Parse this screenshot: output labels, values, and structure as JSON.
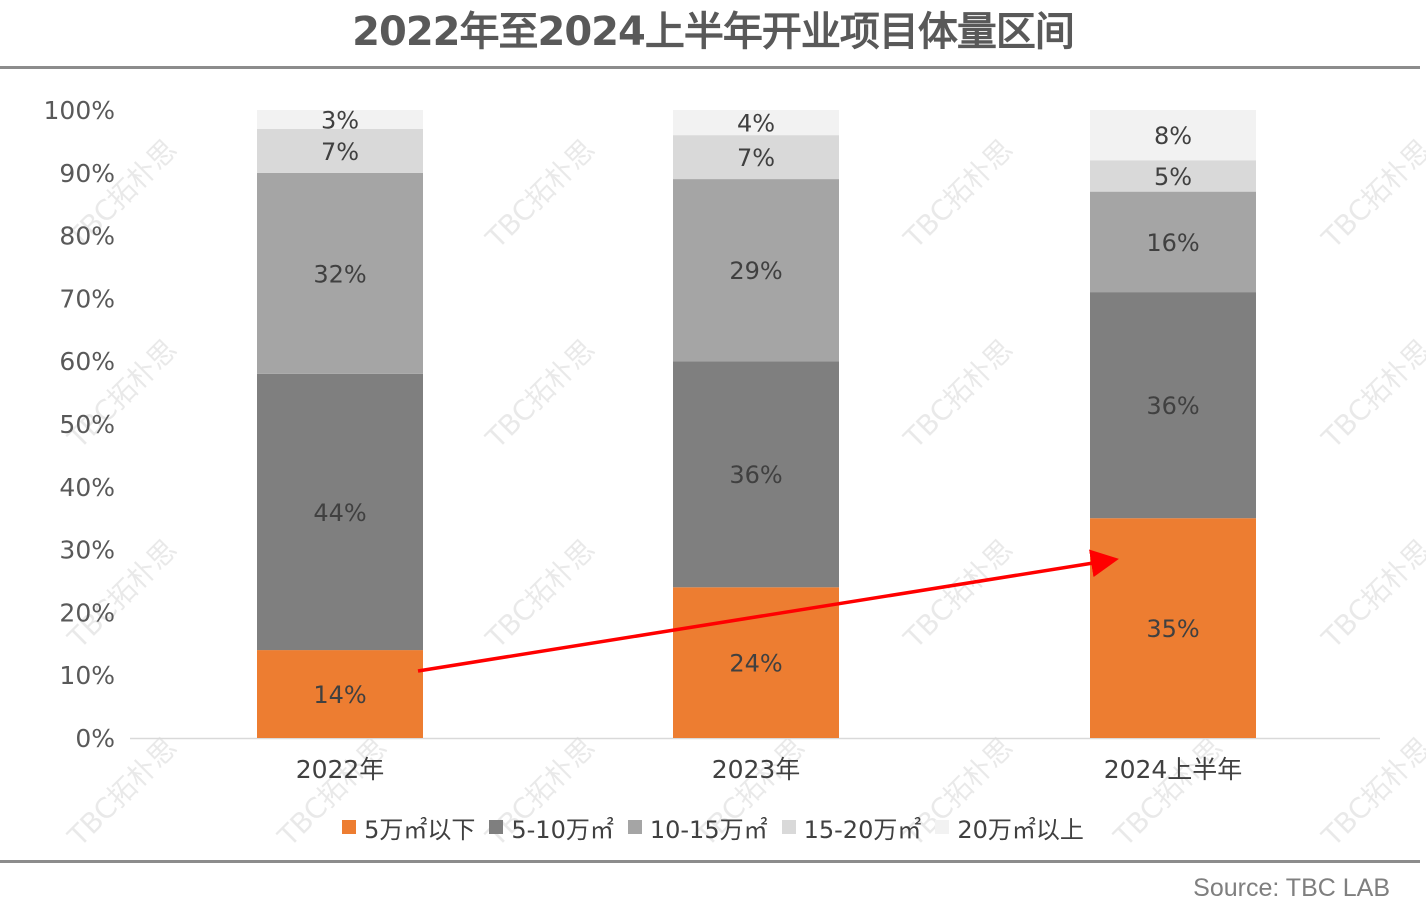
{
  "title": "2022年至2024上半年开业项目体量区间",
  "source": "Source: TBC LAB",
  "watermark": "TBC拓朴思",
  "chart_data": {
    "type": "bar",
    "stacked": true,
    "categories": [
      "2022年",
      "2023年",
      "2024上半年"
    ],
    "ylim": [
      0,
      100
    ],
    "yticks": [
      "0%",
      "10%",
      "20%",
      "30%",
      "40%",
      "50%",
      "60%",
      "70%",
      "80%",
      "90%",
      "100%"
    ],
    "series": [
      {
        "name": "5万㎡以下",
        "values": [
          14,
          24,
          35
        ],
        "labels": [
          "14%",
          "24%",
          "35%"
        ],
        "color": "#ED7D31"
      },
      {
        "name": "5-10万㎡",
        "values": [
          44,
          36,
          36
        ],
        "labels": [
          "44%",
          "36%",
          "36%"
        ],
        "color": "#7F7F7F"
      },
      {
        "name": "10-15万㎡",
        "values": [
          32,
          29,
          16
        ],
        "labels": [
          "32%",
          "29%",
          "16%"
        ],
        "color": "#A5A5A5"
      },
      {
        "name": "15-20万㎡",
        "values": [
          7,
          7,
          5
        ],
        "labels": [
          "7%",
          "7%",
          "5%"
        ],
        "color": "#D9D9D9"
      },
      {
        "name": "20万㎡以上",
        "values": [
          3,
          4,
          8
        ],
        "labels": [
          "3%",
          "4%",
          "8%"
        ],
        "color": "#F2F2F2"
      }
    ],
    "legend_position": "bottom",
    "grid": false,
    "arrow": {
      "from_category": 0,
      "to_category": 2,
      "color": "#FF0000"
    }
  }
}
